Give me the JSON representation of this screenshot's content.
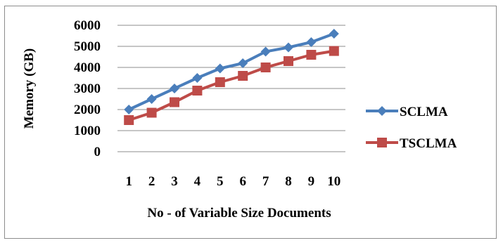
{
  "chart_data": {
    "type": "line",
    "categories": [
      "1",
      "2",
      "3",
      "4",
      "5",
      "6",
      "7",
      "8",
      "9",
      "10"
    ],
    "series": [
      {
        "name": "SCLMA",
        "values": [
          2000,
          2500,
          3000,
          3500,
          3950,
          4200,
          4750,
          4950,
          5200,
          5600
        ],
        "color": "#4a7ebb",
        "marker": "diamond"
      },
      {
        "name": "TSCLMA",
        "values": [
          1500,
          1850,
          2350,
          2900,
          3300,
          3600,
          4000,
          4300,
          4600,
          4780
        ],
        "color": "#be4b48",
        "marker": "square"
      }
    ],
    "xlabel": "No - of Variable Size Documents",
    "ylabel": "Memory (GB)",
    "ylim": [
      0,
      6000
    ],
    "yticks": [
      "0",
      "1000",
      "2000",
      "3000",
      "4000",
      "5000",
      "6000"
    ],
    "grid": true,
    "legend": "right"
  }
}
